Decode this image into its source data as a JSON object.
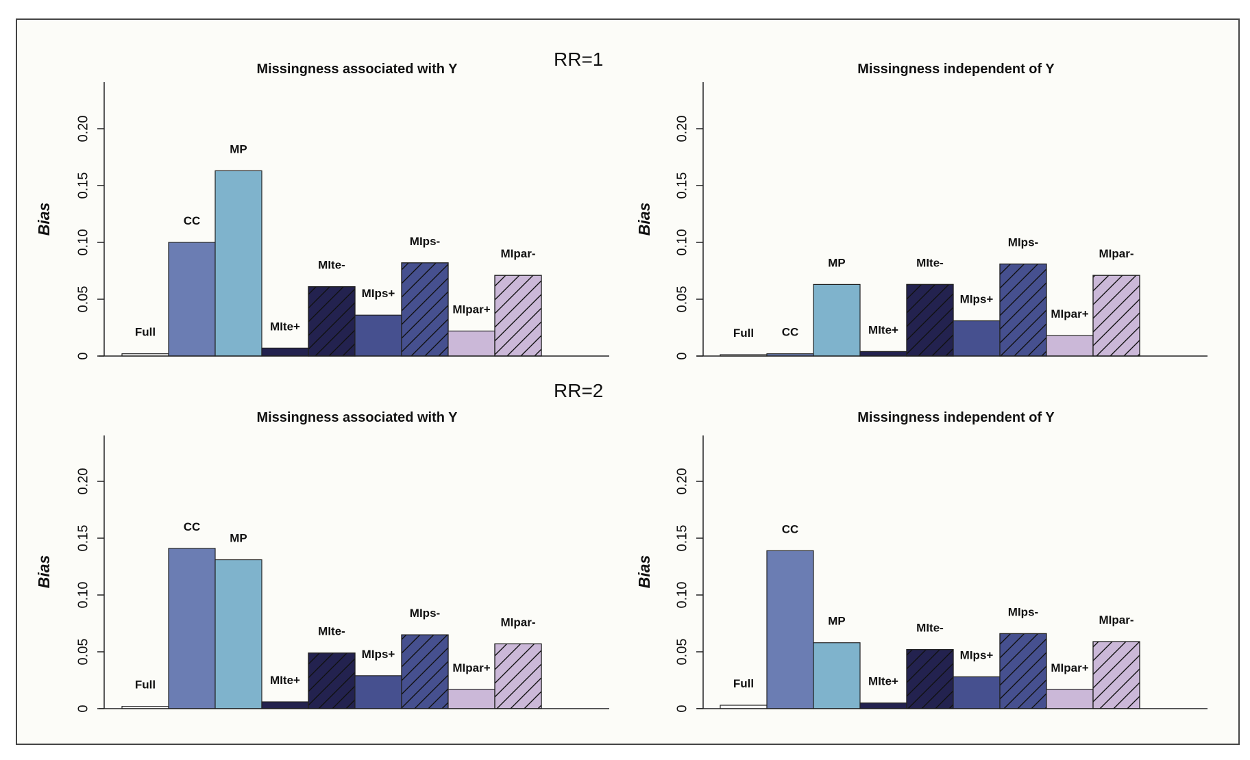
{
  "row_labels": [
    "RR=1",
    "RR=2"
  ],
  "colors": {
    "Full": "#ffffff",
    "CC": "#6b7db3",
    "MP": "#7fb3cc",
    "MIte+": "#23224f",
    "MIte-": "#23224f",
    "MIps+": "#46508f",
    "MIps-": "#46508f",
    "MIpar+": "#cbb8d8",
    "MIpar-": "#cbb8d8"
  },
  "hatched": [
    "MIte-",
    "MIps-",
    "MIpar-"
  ],
  "chart_data": [
    {
      "type": "bar",
      "title": "Missingness associated with Y",
      "row_label": "RR=1",
      "ylabel": "Bias",
      "ylim": [
        0,
        0.24
      ],
      "yticks": [
        "0",
        "0.05",
        "0.10",
        "0.15",
        "0.20"
      ],
      "categories": [
        "Full",
        "CC",
        "MP",
        "MIte+",
        "MIte-",
        "MIps+",
        "MIps-",
        "MIpar+",
        "MIpar-"
      ],
      "values": [
        0.002,
        0.1,
        0.163,
        0.007,
        0.061,
        0.036,
        0.082,
        0.022,
        0.071
      ]
    },
    {
      "type": "bar",
      "title": "Missingness independent of Y",
      "row_label": "RR=1",
      "ylabel": "Bias",
      "ylim": [
        0,
        0.24
      ],
      "yticks": [
        "0",
        "0.05",
        "0.10",
        "0.15",
        "0.20"
      ],
      "categories": [
        "Full",
        "CC",
        "MP",
        "MIte+",
        "MIte-",
        "MIps+",
        "MIps-",
        "MIpar+",
        "MIpar-"
      ],
      "values": [
        0.001,
        0.002,
        0.063,
        0.004,
        0.063,
        0.031,
        0.081,
        0.018,
        0.071
      ]
    },
    {
      "type": "bar",
      "title": "Missingness associated with Y",
      "row_label": "RR=2",
      "ylabel": "Bias",
      "ylim": [
        0,
        0.24
      ],
      "yticks": [
        "0",
        "0.05",
        "0.10",
        "0.15",
        "0.20"
      ],
      "categories": [
        "Full",
        "CC",
        "MP",
        "MIte+",
        "MIte-",
        "MIps+",
        "MIps-",
        "MIpar+",
        "MIpar-"
      ],
      "values": [
        0.002,
        0.141,
        0.131,
        0.006,
        0.049,
        0.029,
        0.065,
        0.017,
        0.057
      ]
    },
    {
      "type": "bar",
      "title": "Missingness independent of Y",
      "row_label": "RR=2",
      "ylabel": "Bias",
      "ylim": [
        0,
        0.24
      ],
      "yticks": [
        "0",
        "0.05",
        "0.10",
        "0.15",
        "0.20"
      ],
      "categories": [
        "Full",
        "CC",
        "MP",
        "MIte+",
        "MIte-",
        "MIps+",
        "MIps-",
        "MIpar+",
        "MIpar-"
      ],
      "values": [
        0.003,
        0.139,
        0.058,
        0.005,
        0.052,
        0.028,
        0.066,
        0.017,
        0.059
      ]
    }
  ]
}
